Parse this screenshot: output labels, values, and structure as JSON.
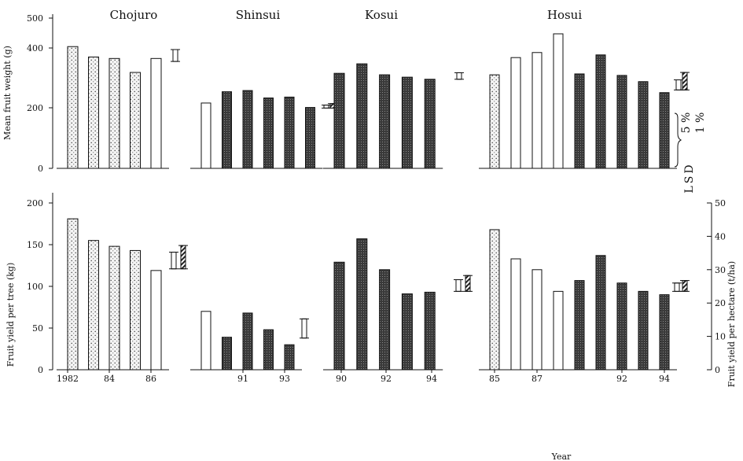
{
  "chart_data": [
    {
      "type": "bar",
      "ylabel": "Mean fruit weight (g)",
      "yticks": [
        "0",
        "200",
        "400",
        "500"
      ],
      "ylim": [
        0,
        500
      ],
      "panels": [
        {
          "title": "Chojuro",
          "values": [
            410,
            375,
            370,
            323,
            370
          ],
          "fills": [
            "dot",
            "dot",
            "dot",
            "dot",
            "white"
          ],
          "lsd": [
            {
              "low": 360,
              "high": 400,
              "fill": "white"
            }
          ]
        },
        {
          "title": "Shinsui",
          "values": [
            220,
            258,
            262,
            237,
            240,
            205
          ],
          "fills": [
            "white",
            "dark",
            "dark",
            "dark",
            "dark",
            "dark"
          ],
          "lsd": [
            {
              "low": 203,
              "high": 213,
              "fill": "white"
            },
            {
              "low": 203,
              "high": 218,
              "fill": "hatch"
            }
          ]
        },
        {
          "title": "Kosui",
          "values": [
            320,
            352,
            315,
            307,
            300
          ],
          "fills": [
            "dark",
            "dark",
            "dark",
            "dark",
            "dark"
          ],
          "lsd": [
            {
              "low": 300,
              "high": 322,
              "fill": "white"
            }
          ]
        },
        {
          "title": "Hosui",
          "values": [
            315,
            373,
            390,
            453,
            318,
            382,
            313,
            292,
            255
          ],
          "fills": [
            "dot",
            "white",
            "white",
            "white",
            "dark",
            "dark",
            "dark",
            "dark",
            "dark"
          ],
          "lsd": [
            {
              "low": 264,
              "high": 298,
              "fill": "white"
            },
            {
              "low": 264,
              "high": 323,
              "fill": "hatch"
            }
          ]
        }
      ]
    },
    {
      "type": "bar",
      "ylabel": "Fruit yield per tree (kg)",
      "yticks": [
        "0",
        "50",
        "100",
        "150",
        "200"
      ],
      "ylim": [
        0,
        200
      ],
      "y2label": "Fruit yield per hectare (t/ha)",
      "y2ticks": [
        "0",
        "10",
        "20",
        "30",
        "40",
        "50"
      ],
      "y2lim": [
        0,
        50
      ],
      "xlabel": "Year",
      "panels": [
        {
          "values": [
            181,
            155,
            148,
            143,
            119
          ],
          "fills": [
            "dot",
            "dot",
            "dot",
            "dot",
            "white"
          ],
          "xticks": [
            "1982",
            "84",
            "86"
          ],
          "lsd": [
            {
              "low": 121,
              "high": 141,
              "fill": "white"
            },
            {
              "low": 121,
              "high": 149,
              "fill": "hatch"
            }
          ]
        },
        {
          "values": [
            70,
            39,
            68,
            48,
            30
          ],
          "fills": [
            "white",
            "dark",
            "dark",
            "dark",
            "dark"
          ],
          "xticks": [
            "91",
            "93"
          ],
          "lsd": [
            {
              "low": 38,
              "high": 61,
              "fill": "white"
            }
          ]
        },
        {
          "values": [
            129,
            157,
            120,
            91,
            93
          ],
          "fills": [
            "dark",
            "dark",
            "dark",
            "dark",
            "dark"
          ],
          "xticks": [
            "90",
            "92",
            "94"
          ],
          "lsd": [
            {
              "low": 94,
              "high": 108,
              "fill": "white"
            },
            {
              "low": 94,
              "high": 113,
              "fill": "hatch"
            }
          ]
        },
        {
          "values": [
            168,
            133,
            120,
            94,
            107,
            137,
            104,
            94,
            90
          ],
          "fills": [
            "dot",
            "white",
            "white",
            "white",
            "dark",
            "dark",
            "dark",
            "dark",
            "dark"
          ],
          "xticks": [
            "85",
            "87",
            "92",
            "94"
          ],
          "lsd": [
            {
              "low": 94,
              "high": 104,
              "fill": "white"
            },
            {
              "low": 94,
              "high": 107,
              "fill": "hatch"
            }
          ]
        }
      ]
    }
  ],
  "legend": {
    "title": "LSD",
    "entries": [
      "5 %",
      "1 %"
    ]
  }
}
